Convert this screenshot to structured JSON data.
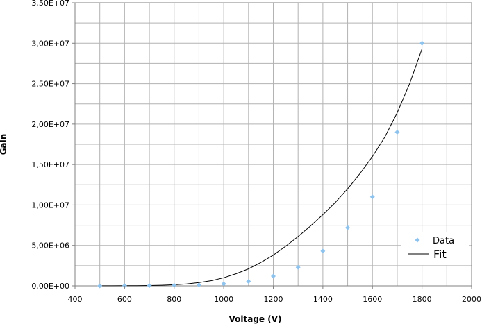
{
  "chart_data": {
    "type": "scatter",
    "xlabel": "Voltage (V)",
    "ylabel": "Gain",
    "xlim": [
      400,
      2000
    ],
    "ylim": [
      0,
      35000000
    ],
    "x_ticks": [
      400,
      600,
      800,
      1000,
      1200,
      1400,
      1600,
      1800,
      2000
    ],
    "x_tick_labels": [
      "400",
      "600",
      "800",
      "1000",
      "1200",
      "1400",
      "1600",
      "1800",
      "2000"
    ],
    "y_ticks": [
      0,
      5000000,
      10000000,
      15000000,
      20000000,
      25000000,
      30000000,
      35000000
    ],
    "y_tick_labels": [
      "0,00E+00",
      "5,00E+06",
      "1,00E+07",
      "1,50E+07",
      "2,00E+07",
      "2,50E+07",
      "3,00E+07",
      "3,50E+07"
    ],
    "grid": true,
    "minor_x_step": 100,
    "legend_position": "right",
    "series": [
      {
        "name": "Data",
        "kind": "scatter",
        "color": "#8ec3ee",
        "x": [
          500,
          600,
          700,
          800,
          900,
          1000,
          1100,
          1200,
          1300,
          1400,
          1500,
          1600,
          1700,
          1800
        ],
        "y": [
          5000,
          10000,
          30000,
          60000,
          120000,
          250000,
          550000,
          1200000,
          2300000,
          4300000,
          7200000,
          11000000,
          19000000,
          30000000
        ]
      },
      {
        "name": "Fit",
        "kind": "line",
        "color": "#000000",
        "fit": "exponential",
        "x": [
          500,
          550,
          600,
          650,
          700,
          750,
          800,
          850,
          900,
          950,
          1000,
          1050,
          1100,
          1150,
          1200,
          1250,
          1300,
          1350,
          1400,
          1450,
          1500,
          1550,
          1600,
          1650,
          1700,
          1750,
          1800
        ],
        "y": [
          4300,
          7800,
          14000,
          25000,
          44000,
          78000,
          138000,
          235000,
          400000,
          640000,
          1000000,
          1500000,
          2100000,
          2900000,
          3800000,
          4900000,
          6100000,
          7400000,
          8800000,
          10300000,
          12000000,
          13900000,
          16000000,
          18400000,
          21400000,
          25000000,
          29300000
        ]
      }
    ]
  }
}
